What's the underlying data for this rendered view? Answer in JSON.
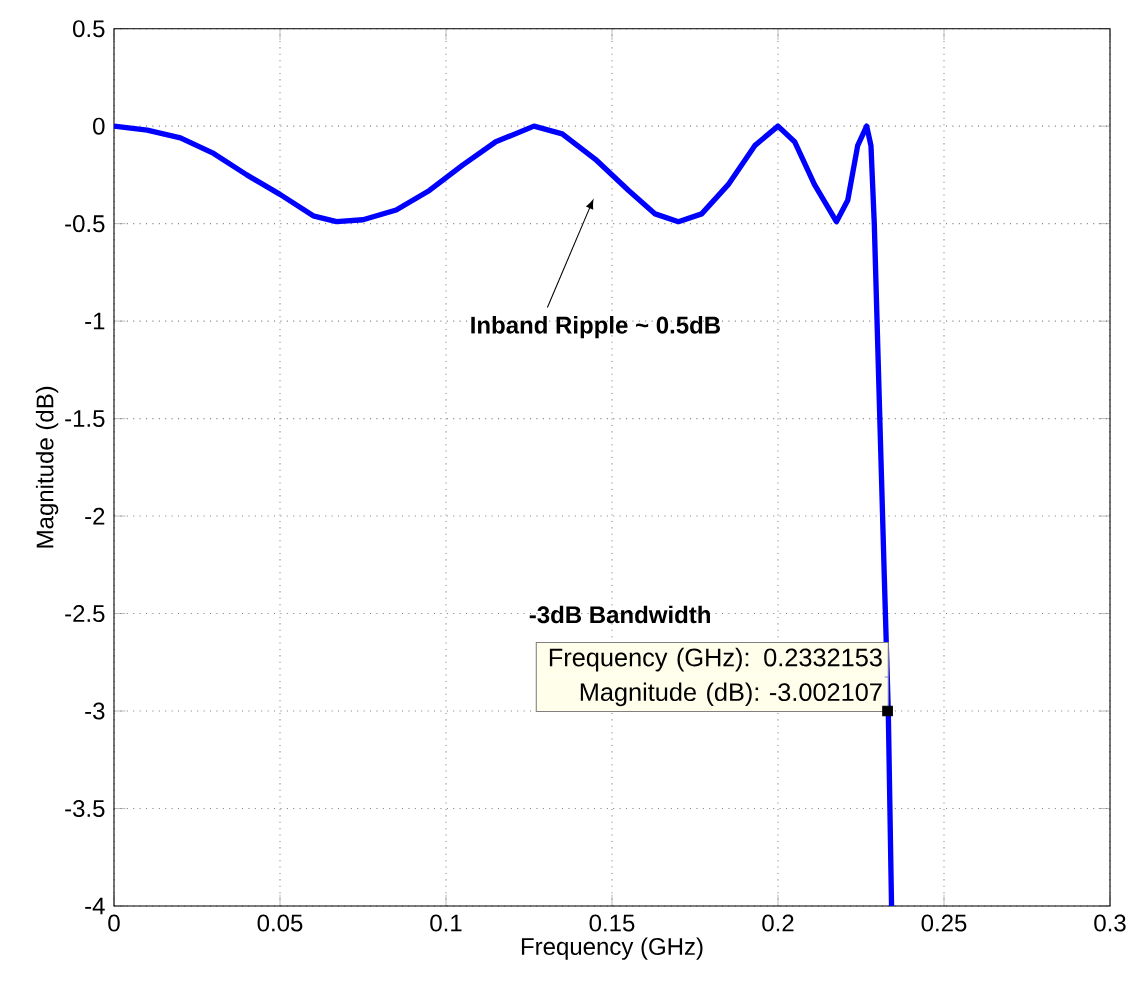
{
  "chart_data": {
    "type": "line",
    "xlabel": "Frequency (GHz)",
    "ylabel": "Magnitude (dB)",
    "xlim": [
      0,
      0.3
    ],
    "ylim": [
      -4,
      0.5
    ],
    "xticks": [
      0,
      0.05,
      0.1,
      0.15,
      0.2,
      0.25,
      0.3
    ],
    "yticks": [
      0.5,
      0,
      -0.5,
      -1,
      -1.5,
      -2,
      -2.5,
      -3,
      -3.5,
      -4
    ],
    "grid": true,
    "series": [
      {
        "color": "#0000ff",
        "x": [
          0,
          0.01,
          0.02,
          0.03,
          0.04,
          0.05,
          0.06,
          0.067,
          0.075,
          0.085,
          0.095,
          0.105,
          0.115,
          0.1265,
          0.135,
          0.145,
          0.155,
          0.163,
          0.17,
          0.177,
          0.185,
          0.193,
          0.2,
          0.205,
          0.211,
          0.2176,
          0.221,
          0.224,
          0.2267,
          0.228,
          0.229,
          0.23,
          0.231,
          0.232,
          0.2332153,
          0.2342
        ],
        "values": [
          0,
          -0.02,
          -0.06,
          -0.14,
          -0.25,
          -0.35,
          -0.46,
          -0.49,
          -0.48,
          -0.43,
          -0.33,
          -0.2,
          -0.08,
          0,
          -0.04,
          -0.17,
          -0.33,
          -0.45,
          -0.49,
          -0.45,
          -0.3,
          -0.1,
          0,
          -0.08,
          -0.3,
          -0.49,
          -0.38,
          -0.1,
          0,
          -0.1,
          -0.5,
          -1.1,
          -1.7,
          -2.3,
          -3,
          -4
        ]
      },
      {
        "type": "scatter",
        "color": "#000000",
        "marker": "square",
        "x": [
          0.233
        ],
        "values": [
          -3
        ]
      }
    ],
    "annotations": [
      "Inband Ripple ~ 0.5dB",
      "-3dB Bandwidth",
      {
        "text": "Frequency (GHz): 0.2332153",
        "x": 0.2332153,
        "y": -3.002107
      },
      {
        "text": "Magnitude (dB): -3.002107",
        "x": 0.2332153,
        "y": -3.002107
      }
    ]
  }
}
